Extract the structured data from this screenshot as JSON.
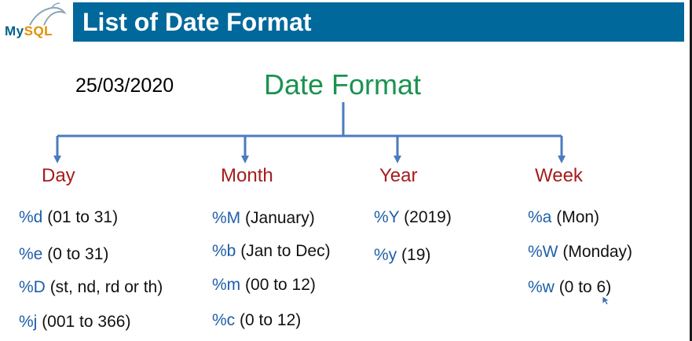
{
  "header": {
    "logo_my": "My",
    "logo_sql": "SQL",
    "title": "List of Date Format"
  },
  "example_date": "25/03/2020",
  "root": "Date Format",
  "categories": [
    {
      "name": "Day",
      "items": [
        {
          "code": "%d",
          "desc": "(01 to 31)"
        },
        {
          "code": "%e",
          "desc": "(0 to 31)"
        },
        {
          "code": "%D",
          "desc": "(st, nd, rd or th)"
        },
        {
          "code": "%j",
          "desc": "(001 to 366)"
        }
      ]
    },
    {
      "name": "Month",
      "items": [
        {
          "code": "%M",
          "desc": "(January)"
        },
        {
          "code": "%b",
          "desc": "(Jan to Dec)"
        },
        {
          "code": "%m",
          "desc": "(00 to 12)"
        },
        {
          "code": "%c",
          "desc": "(0 to 12)"
        }
      ]
    },
    {
      "name": "Year",
      "items": [
        {
          "code": "%Y",
          "desc": "(2019)"
        },
        {
          "code": "%y",
          "desc": "(19)"
        }
      ]
    },
    {
      "name": "Week",
      "items": [
        {
          "code": "%a",
          "desc": "(Mon)"
        },
        {
          "code": "%W",
          "desc": "(Monday)"
        },
        {
          "code": "%w",
          "desc": "(0 to 6)"
        }
      ]
    }
  ],
  "colors": {
    "title_bar": "#00689a",
    "root": "#1a9350",
    "category": "#a61c1c",
    "code": "#1f5fa8",
    "connector": "#4a7bbf"
  }
}
